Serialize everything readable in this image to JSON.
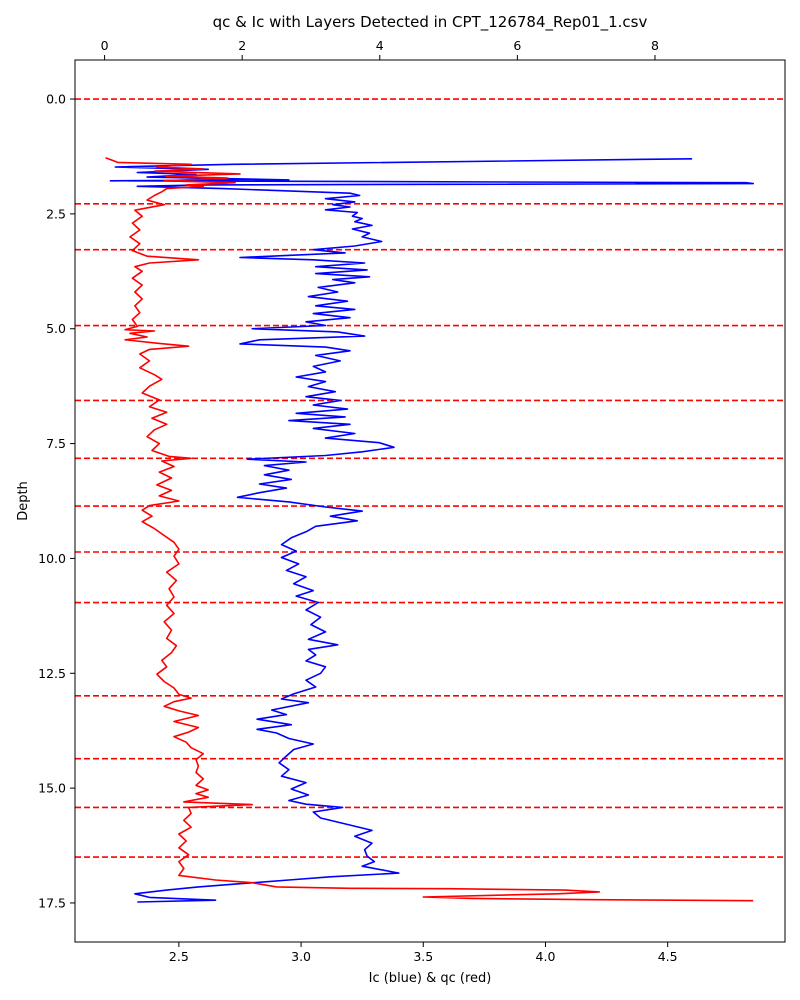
{
  "chart_data": {
    "type": "line",
    "title": "qc & Ic with Layers Detected in CPT_126784_Rep01_1.csv",
    "xlabel": "Ic (blue) & qc (red)",
    "ylabel": "Depth",
    "y_inverted": true,
    "ylim": [
      18.35,
      -0.85
    ],
    "xlim_bottom": [
      2.075,
      4.98
    ],
    "xlim_top": [
      -0.43,
      9.89
    ],
    "bottom_ticks": [
      2.5,
      3.0,
      3.5,
      4.0,
      4.5
    ],
    "bottom_tick_labels": [
      "2.5",
      "3.0",
      "3.5",
      "4.0",
      "4.5"
    ],
    "top_ticks": [
      0,
      2,
      4,
      6,
      8
    ],
    "top_tick_labels": [
      "0",
      "2",
      "4",
      "6",
      "8"
    ],
    "y_ticks": [
      0.0,
      2.5,
      5.0,
      7.5,
      10.0,
      12.5,
      15.0,
      17.5
    ],
    "y_tick_labels": [
      "0.0",
      "2.5",
      "5.0",
      "7.5",
      "10.0",
      "12.5",
      "15.0",
      "17.5"
    ],
    "grid": false,
    "layer_boundaries": [
      0.0,
      2.28,
      3.28,
      4.93,
      6.56,
      7.82,
      8.86,
      9.86,
      10.96,
      12.99,
      14.36,
      15.42,
      16.5
    ],
    "series": [
      {
        "color": "#0000ff",
        "axis": "bottom",
        "x_label": "Ic",
        "points": [
          [
            4.6,
            1.3
          ],
          [
            2.72,
            1.42
          ],
          [
            2.24,
            1.48
          ],
          [
            2.62,
            1.53
          ],
          [
            2.33,
            1.6
          ],
          [
            2.57,
            1.64
          ],
          [
            2.37,
            1.7
          ],
          [
            2.95,
            1.76
          ],
          [
            2.22,
            1.78
          ],
          [
            4.82,
            1.82
          ],
          [
            4.85,
            1.84
          ],
          [
            2.6,
            1.87
          ],
          [
            2.33,
            1.9
          ],
          [
            2.68,
            1.95
          ],
          [
            3.2,
            2.05
          ],
          [
            3.24,
            2.1
          ],
          [
            3.1,
            2.17
          ],
          [
            3.22,
            2.24
          ],
          [
            3.13,
            2.3
          ],
          [
            3.2,
            2.35
          ],
          [
            3.1,
            2.41
          ],
          [
            3.23,
            2.47
          ],
          [
            3.21,
            2.55
          ],
          [
            3.25,
            2.6
          ],
          [
            3.22,
            2.67
          ],
          [
            3.29,
            2.75
          ],
          [
            3.21,
            2.83
          ],
          [
            3.28,
            2.92
          ],
          [
            3.25,
            3.0
          ],
          [
            3.33,
            3.1
          ],
          [
            3.22,
            3.2
          ],
          [
            3.05,
            3.28
          ],
          [
            3.18,
            3.35
          ],
          [
            2.75,
            3.45
          ],
          [
            3.05,
            3.5
          ],
          [
            3.26,
            3.57
          ],
          [
            3.06,
            3.65
          ],
          [
            3.27,
            3.72
          ],
          [
            3.06,
            3.8
          ],
          [
            3.28,
            3.87
          ],
          [
            3.13,
            3.93
          ],
          [
            3.22,
            4.0
          ],
          [
            3.07,
            4.1
          ],
          [
            3.15,
            4.2
          ],
          [
            3.03,
            4.3
          ],
          [
            3.19,
            4.4
          ],
          [
            3.06,
            4.5
          ],
          [
            3.22,
            4.58
          ],
          [
            3.05,
            4.67
          ],
          [
            3.2,
            4.76
          ],
          [
            3.02,
            4.85
          ],
          [
            3.1,
            4.93
          ],
          [
            2.8,
            5.0
          ],
          [
            3.15,
            5.07
          ],
          [
            3.26,
            5.16
          ],
          [
            2.83,
            5.24
          ],
          [
            2.75,
            5.33
          ],
          [
            3.1,
            5.4
          ],
          [
            3.2,
            5.48
          ],
          [
            3.06,
            5.58
          ],
          [
            3.16,
            5.7
          ],
          [
            3.05,
            5.82
          ],
          [
            3.1,
            5.94
          ],
          [
            2.98,
            6.05
          ],
          [
            3.1,
            6.15
          ],
          [
            3.03,
            6.26
          ],
          [
            3.14,
            6.37
          ],
          [
            3.02,
            6.48
          ],
          [
            3.16,
            6.56
          ],
          [
            3.05,
            6.66
          ],
          [
            3.19,
            6.75
          ],
          [
            2.98,
            6.84
          ],
          [
            3.18,
            6.92
          ],
          [
            2.95,
            7.0
          ],
          [
            3.2,
            7.08
          ],
          [
            3.05,
            7.17
          ],
          [
            3.22,
            7.28
          ],
          [
            3.1,
            7.38
          ],
          [
            3.32,
            7.48
          ],
          [
            3.38,
            7.58
          ],
          [
            3.25,
            7.68
          ],
          [
            3.1,
            7.76
          ],
          [
            2.78,
            7.84
          ],
          [
            3.02,
            7.9
          ],
          [
            2.85,
            7.98
          ],
          [
            2.95,
            8.08
          ],
          [
            2.85,
            8.18
          ],
          [
            2.96,
            8.28
          ],
          [
            2.83,
            8.38
          ],
          [
            2.94,
            8.47
          ],
          [
            2.83,
            8.57
          ],
          [
            2.74,
            8.67
          ],
          [
            2.95,
            8.77
          ],
          [
            3.1,
            8.88
          ],
          [
            3.25,
            8.97
          ],
          [
            3.12,
            9.08
          ],
          [
            3.23,
            9.18
          ],
          [
            3.06,
            9.3
          ],
          [
            3.02,
            9.42
          ],
          [
            2.96,
            9.55
          ],
          [
            2.92,
            9.7
          ],
          [
            2.98,
            9.84
          ],
          [
            2.92,
            9.98
          ],
          [
            2.99,
            10.12
          ],
          [
            2.94,
            10.26
          ],
          [
            3.02,
            10.4
          ],
          [
            2.97,
            10.55
          ],
          [
            3.05,
            10.7
          ],
          [
            2.98,
            10.82
          ],
          [
            3.07,
            10.96
          ],
          [
            3.02,
            11.12
          ],
          [
            3.08,
            11.28
          ],
          [
            3.04,
            11.44
          ],
          [
            3.1,
            11.6
          ],
          [
            3.03,
            11.76
          ],
          [
            3.15,
            11.88
          ],
          [
            3.03,
            11.98
          ],
          [
            3.06,
            12.1
          ],
          [
            3.02,
            12.23
          ],
          [
            3.1,
            12.36
          ],
          [
            3.08,
            12.5
          ],
          [
            3.02,
            12.65
          ],
          [
            3.06,
            12.8
          ],
          [
            2.97,
            12.95
          ],
          [
            2.92,
            13.06
          ],
          [
            3.03,
            13.14
          ],
          [
            2.88,
            13.3
          ],
          [
            2.94,
            13.4
          ],
          [
            2.82,
            13.5
          ],
          [
            2.96,
            13.62
          ],
          [
            2.82,
            13.72
          ],
          [
            2.9,
            13.8
          ],
          [
            2.95,
            13.92
          ],
          [
            3.05,
            14.04
          ],
          [
            2.97,
            14.16
          ],
          [
            2.94,
            14.3
          ],
          [
            2.91,
            14.45
          ],
          [
            2.95,
            14.6
          ],
          [
            2.92,
            14.74
          ],
          [
            3.02,
            14.88
          ],
          [
            2.96,
            15.02
          ],
          [
            3.03,
            15.15
          ],
          [
            2.95,
            15.27
          ],
          [
            3.02,
            15.35
          ],
          [
            3.17,
            15.42
          ],
          [
            3.05,
            15.52
          ],
          [
            3.08,
            15.65
          ],
          [
            3.18,
            15.78
          ],
          [
            3.29,
            15.92
          ],
          [
            3.22,
            16.05
          ],
          [
            3.29,
            16.2
          ],
          [
            3.26,
            16.34
          ],
          [
            3.27,
            16.48
          ],
          [
            3.3,
            16.6
          ],
          [
            3.25,
            16.7
          ],
          [
            3.4,
            16.85
          ],
          [
            3.12,
            16.93
          ],
          [
            2.95,
            17.0
          ],
          [
            2.75,
            17.08
          ],
          [
            2.58,
            17.15
          ],
          [
            2.45,
            17.22
          ],
          [
            2.32,
            17.3
          ],
          [
            2.38,
            17.38
          ],
          [
            2.65,
            17.44
          ],
          [
            2.33,
            17.48
          ]
        ]
      },
      {
        "color": "#ff0000",
        "axis": "bottom",
        "x_label": "qc",
        "points": [
          [
            2.2,
            1.28
          ],
          [
            2.25,
            1.38
          ],
          [
            2.55,
            1.42
          ],
          [
            2.41,
            1.48
          ],
          [
            2.6,
            1.52
          ],
          [
            2.4,
            1.57
          ],
          [
            2.75,
            1.63
          ],
          [
            2.45,
            1.68
          ],
          [
            2.7,
            1.72
          ],
          [
            2.44,
            1.78
          ],
          [
            2.73,
            1.82
          ],
          [
            2.53,
            1.87
          ],
          [
            2.6,
            1.9
          ],
          [
            2.45,
            1.95
          ],
          [
            2.43,
            2.02
          ],
          [
            2.4,
            2.1
          ],
          [
            2.37,
            2.2
          ],
          [
            2.44,
            2.3
          ],
          [
            2.32,
            2.42
          ],
          [
            2.35,
            2.55
          ],
          [
            2.31,
            2.7
          ],
          [
            2.34,
            2.85
          ],
          [
            2.3,
            3.0
          ],
          [
            2.34,
            3.15
          ],
          [
            2.31,
            3.3
          ],
          [
            2.37,
            3.42
          ],
          [
            2.58,
            3.5
          ],
          [
            2.38,
            3.57
          ],
          [
            2.32,
            3.65
          ],
          [
            2.35,
            3.75
          ],
          [
            2.31,
            3.9
          ],
          [
            2.35,
            4.05
          ],
          [
            2.32,
            4.2
          ],
          [
            2.35,
            4.35
          ],
          [
            2.32,
            4.5
          ],
          [
            2.34,
            4.65
          ],
          [
            2.31,
            4.8
          ],
          [
            2.33,
            4.95
          ],
          [
            2.28,
            5.02
          ],
          [
            2.4,
            5.05
          ],
          [
            2.3,
            5.1
          ],
          [
            2.37,
            5.18
          ],
          [
            2.28,
            5.24
          ],
          [
            2.42,
            5.32
          ],
          [
            2.54,
            5.38
          ],
          [
            2.38,
            5.45
          ],
          [
            2.34,
            5.55
          ],
          [
            2.38,
            5.7
          ],
          [
            2.34,
            5.85
          ],
          [
            2.4,
            6.0
          ],
          [
            2.43,
            6.1
          ],
          [
            2.38,
            6.25
          ],
          [
            2.35,
            6.4
          ],
          [
            2.42,
            6.55
          ],
          [
            2.38,
            6.7
          ],
          [
            2.45,
            6.82
          ],
          [
            2.39,
            6.95
          ],
          [
            2.45,
            7.08
          ],
          [
            2.4,
            7.2
          ],
          [
            2.37,
            7.35
          ],
          [
            2.42,
            7.5
          ],
          [
            2.39,
            7.65
          ],
          [
            2.46,
            7.78
          ],
          [
            2.55,
            7.82
          ],
          [
            2.43,
            7.88
          ],
          [
            2.48,
            8.0
          ],
          [
            2.42,
            8.12
          ],
          [
            2.47,
            8.25
          ],
          [
            2.41,
            8.4
          ],
          [
            2.47,
            8.52
          ],
          [
            2.42,
            8.64
          ],
          [
            2.5,
            8.75
          ],
          [
            2.38,
            8.85
          ],
          [
            2.35,
            8.95
          ],
          [
            2.39,
            9.08
          ],
          [
            2.35,
            9.2
          ],
          [
            2.4,
            9.35
          ],
          [
            2.44,
            9.5
          ],
          [
            2.48,
            9.65
          ],
          [
            2.5,
            9.8
          ],
          [
            2.48,
            9.95
          ],
          [
            2.5,
            10.12
          ],
          [
            2.45,
            10.3
          ],
          [
            2.49,
            10.48
          ],
          [
            2.46,
            10.66
          ],
          [
            2.48,
            10.84
          ],
          [
            2.45,
            11.02
          ],
          [
            2.48,
            11.2
          ],
          [
            2.44,
            11.38
          ],
          [
            2.47,
            11.56
          ],
          [
            2.45,
            11.74
          ],
          [
            2.49,
            11.9
          ],
          [
            2.47,
            12.05
          ],
          [
            2.43,
            12.22
          ],
          [
            2.45,
            12.36
          ],
          [
            2.41,
            12.52
          ],
          [
            2.44,
            12.68
          ],
          [
            2.48,
            12.82
          ],
          [
            2.5,
            12.96
          ],
          [
            2.55,
            13.04
          ],
          [
            2.48,
            13.12
          ],
          [
            2.44,
            13.22
          ],
          [
            2.5,
            13.32
          ],
          [
            2.58,
            13.42
          ],
          [
            2.48,
            13.55
          ],
          [
            2.58,
            13.68
          ],
          [
            2.54,
            13.78
          ],
          [
            2.48,
            13.88
          ],
          [
            2.53,
            14.0
          ],
          [
            2.55,
            14.12
          ],
          [
            2.6,
            14.25
          ],
          [
            2.57,
            14.38
          ],
          [
            2.58,
            14.52
          ],
          [
            2.57,
            14.66
          ],
          [
            2.6,
            14.8
          ],
          [
            2.57,
            14.94
          ],
          [
            2.62,
            15.04
          ],
          [
            2.57,
            15.12
          ],
          [
            2.62,
            15.2
          ],
          [
            2.52,
            15.3
          ],
          [
            2.8,
            15.36
          ],
          [
            2.54,
            15.42
          ],
          [
            2.55,
            15.55
          ],
          [
            2.52,
            15.7
          ],
          [
            2.55,
            15.85
          ],
          [
            2.5,
            16.0
          ],
          [
            2.53,
            16.15
          ],
          [
            2.5,
            16.3
          ],
          [
            2.54,
            16.45
          ],
          [
            2.5,
            16.6
          ],
          [
            2.52,
            16.75
          ],
          [
            2.5,
            16.9
          ],
          [
            2.65,
            17.0
          ],
          [
            2.8,
            17.06
          ],
          [
            2.9,
            17.15
          ],
          [
            3.2,
            17.18
          ],
          [
            3.6,
            17.19
          ],
          [
            4.08,
            17.22
          ],
          [
            4.22,
            17.26
          ],
          [
            4.05,
            17.3
          ],
          [
            3.5,
            17.37
          ],
          [
            3.7,
            17.4
          ],
          [
            4.2,
            17.43
          ],
          [
            4.85,
            17.45
          ]
        ]
      }
    ]
  }
}
